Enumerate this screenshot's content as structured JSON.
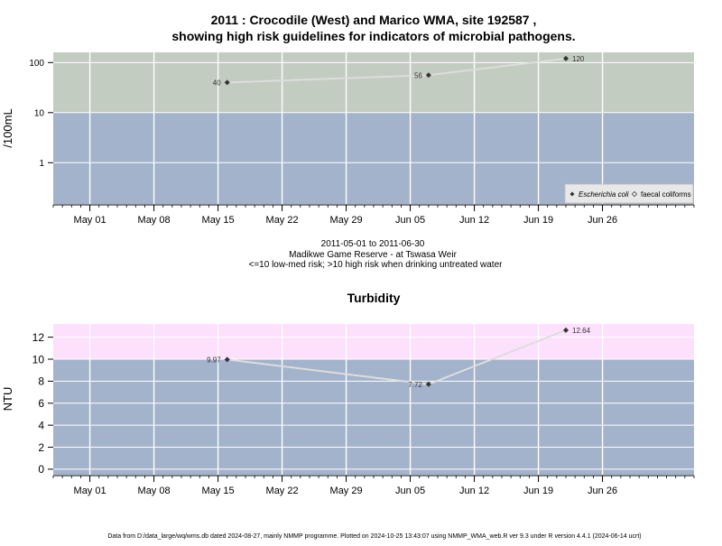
{
  "title_line1": "2011 : Crocodile (West) and Marico WMA, site 192587 ,",
  "title_line2": "showing high risk guidelines for indicators of microbial pathogens.",
  "microbial_caption": {
    "line1": "2011-05-01 to 2011-06-30",
    "line2": "Madikwe Game Reserve - at Tswasa Weir",
    "line3": "<=10 low-med risk; >10 high risk when drinking untreated water"
  },
  "footer": "Data from D:/data_large/wq/wms.db dated 2024-08-27, mainly NMMP programme. Plotted on 2024-10-25 13:43:07 using NMMP_WMA_web.R ver 9.3 under R version 4.4.1 (2024-06-14 ucrt)",
  "colors": {
    "low_risk_band": "#a2b3cb",
    "high_risk_band_microbial": "#c3ccc1",
    "high_risk_band_turbidity": "#fce0fc",
    "grid": "#ffffff",
    "line": "#dddddd",
    "point": "#333333"
  },
  "chart_data": [
    {
      "id": "microbial",
      "type": "line",
      "ylabel": "/100mL",
      "y_scale": "log",
      "ylim": [
        0.15,
        160
      ],
      "yticks": [
        1,
        10,
        100
      ],
      "ytick_labels": [
        "1",
        "10",
        "100"
      ],
      "threshold": 10,
      "x_domain": [
        "2011-04-27",
        "2011-07-06"
      ],
      "xticks": [
        "2011-05-01",
        "2011-05-08",
        "2011-05-15",
        "2011-05-22",
        "2011-05-29",
        "2011-06-05",
        "2011-06-12",
        "2011-06-19",
        "2011-06-26"
      ],
      "xtick_labels": [
        "May 01",
        "May 08",
        "May 15",
        "May 22",
        "May 29",
        "Jun 05",
        "Jun 12",
        "Jun 19",
        "Jun 26"
      ],
      "grid": true,
      "legend_position": "bottom-right",
      "legend": [
        "Escherichia coli",
        "faecal coliforms"
      ],
      "series": [
        {
          "name": "Escherichia coli",
          "x": [
            "2011-05-16",
            "2011-06-07",
            "2011-06-22"
          ],
          "values": [
            40,
            56,
            120
          ],
          "labels": [
            "40",
            "56",
            "120"
          ]
        },
        {
          "name": "faecal coliforms",
          "x": [],
          "values": [],
          "labels": []
        }
      ]
    },
    {
      "id": "turbidity",
      "type": "line",
      "title": "Turbidity",
      "ylabel": "NTU",
      "y_scale": "linear",
      "ylim": [
        -0.5,
        13.2
      ],
      "yticks": [
        0,
        2,
        4,
        6,
        8,
        10,
        12
      ],
      "ytick_labels": [
        "0",
        "2",
        "4",
        "6",
        "8",
        "10",
        "12"
      ],
      "threshold": 10,
      "x_domain": [
        "2011-04-27",
        "2011-07-06"
      ],
      "xticks": [
        "2011-05-01",
        "2011-05-08",
        "2011-05-15",
        "2011-05-22",
        "2011-05-29",
        "2011-06-05",
        "2011-06-12",
        "2011-06-19",
        "2011-06-26"
      ],
      "xtick_labels": [
        "May 01",
        "May 08",
        "May 15",
        "May 22",
        "May 29",
        "Jun 05",
        "Jun 12",
        "Jun 19",
        "Jun 26"
      ],
      "grid": true,
      "series": [
        {
          "name": "",
          "x": [
            "2011-05-16",
            "2011-06-07",
            "2011-06-22"
          ],
          "values": [
            9.97,
            7.72,
            12.64
          ],
          "labels": [
            "9.97",
            "7.72",
            "12.64"
          ]
        }
      ]
    }
  ]
}
